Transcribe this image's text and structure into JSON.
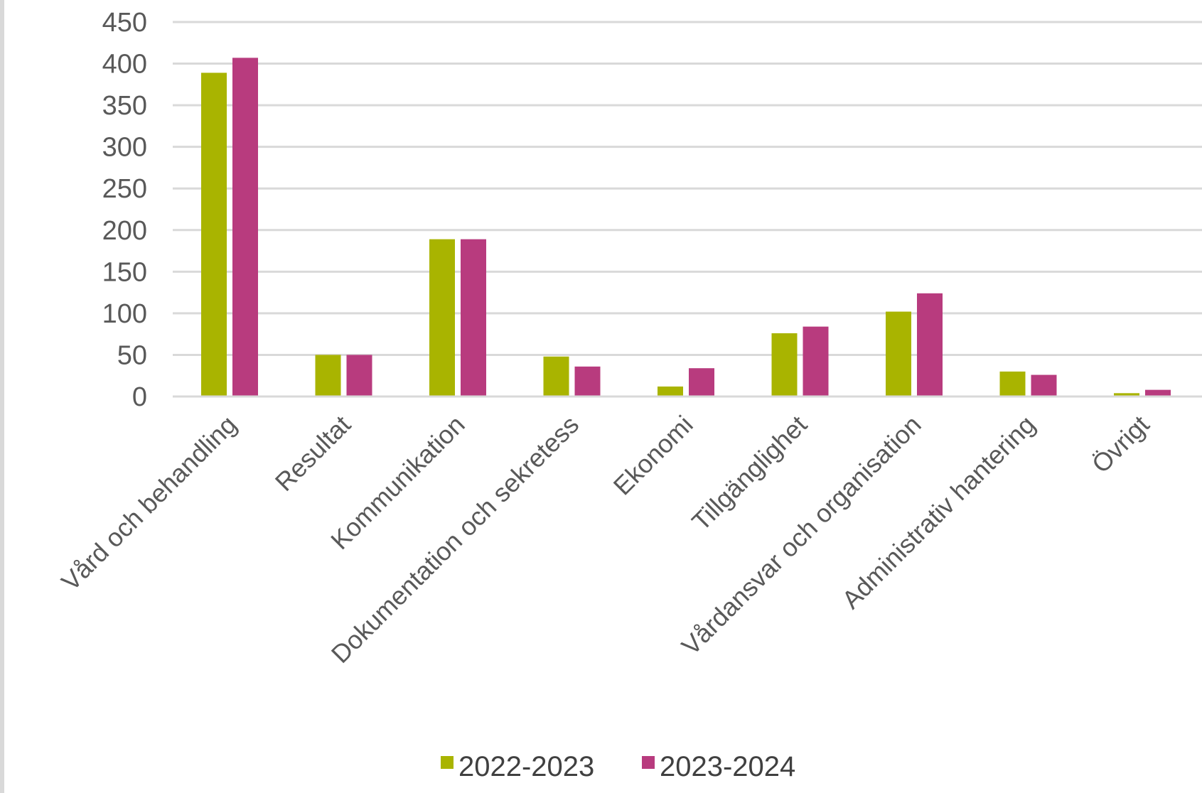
{
  "chart_data": {
    "type": "bar",
    "title": "",
    "xlabel": "",
    "ylabel": "",
    "ylim": [
      0,
      450
    ],
    "yticks": [
      "0",
      "50",
      "100",
      "150",
      "200",
      "250",
      "300",
      "350",
      "400",
      "450"
    ],
    "grid": true,
    "legend_position": "bottom",
    "categories": [
      "Vård och behandling",
      "Resultat",
      "Kommunikation",
      "Dokumentation och sekretess",
      "Ekonomi",
      "Tillgänglighet",
      "Vårdansvar och organisation",
      "Administrativ hantering",
      "Övrigt"
    ],
    "series": [
      {
        "name": "2022-2023",
        "color": "#a9b400",
        "values": [
          389,
          50,
          189,
          48,
          12,
          76,
          102,
          30,
          4
        ]
      },
      {
        "name": "2023-2024",
        "color": "#b83b7e",
        "values": [
          407,
          50,
          189,
          36,
          34,
          84,
          124,
          26,
          8
        ]
      }
    ]
  }
}
